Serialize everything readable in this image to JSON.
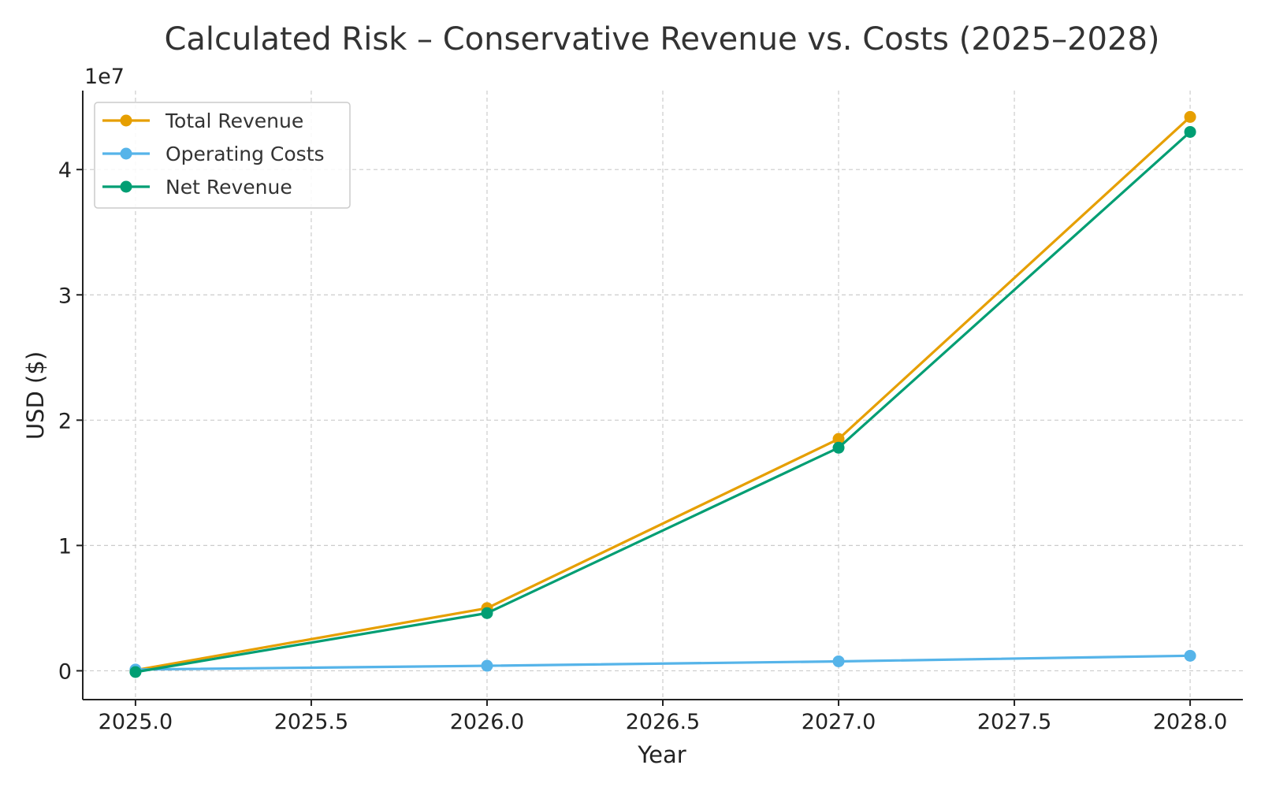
{
  "chart_data": {
    "type": "line",
    "title": "Calculated Risk – Conservative Revenue vs. Costs (2025–2028)",
    "xlabel": "Year",
    "ylabel": "USD ($)",
    "y_offset_label": "1e7",
    "x": [
      2025,
      2026,
      2027,
      2028
    ],
    "xlim": [
      2024.85,
      2028.15
    ],
    "ylim": [
      -2300000,
      46300000
    ],
    "x_ticks": [
      2025.0,
      2025.5,
      2026.0,
      2026.5,
      2027.0,
      2027.5,
      2028.0
    ],
    "x_tick_labels": [
      "2025.0",
      "2025.5",
      "2026.0",
      "2026.5",
      "2027.0",
      "2027.5",
      "2028.0"
    ],
    "y_ticks": [
      0,
      10000000,
      20000000,
      30000000,
      40000000
    ],
    "y_tick_labels": [
      "0",
      "1",
      "2",
      "3",
      "4"
    ],
    "grid": true,
    "legend_position": "top-left",
    "series": [
      {
        "name": "Total Revenue",
        "color": "#E69F00",
        "values": [
          50000,
          5000000,
          18500000,
          44200000
        ]
      },
      {
        "name": "Operating Costs",
        "color": "#56B4E9",
        "values": [
          100000,
          400000,
          750000,
          1200000
        ]
      },
      {
        "name": "Net Revenue",
        "color": "#009E73",
        "values": [
          -100000,
          4600000,
          17800000,
          43000000
        ]
      }
    ]
  }
}
